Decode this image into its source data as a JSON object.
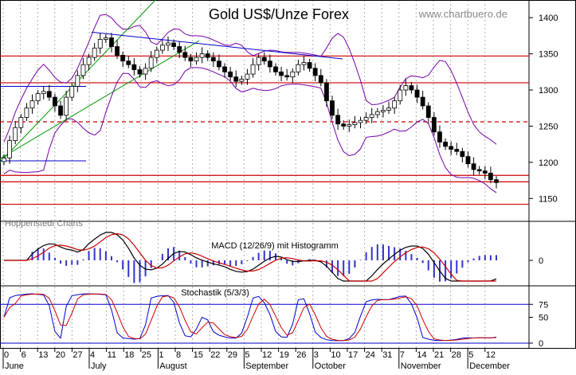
{
  "chart_data": {
    "type": "candlestick",
    "title": "Gold US$/Unze Forex",
    "watermark": "www.chartbuero.de",
    "source_label": "Hoppenstedt Charts",
    "price_axis": {
      "ylim": [
        1125,
        1420
      ],
      "ticks": [
        "1400",
        "1350",
        "1300",
        "1250",
        "1200",
        "1150"
      ]
    },
    "horizontal_lines": [
      {
        "value": 1347,
        "style": "solid",
        "color": "#cc0000"
      },
      {
        "value": 1310,
        "style": "solid",
        "color": "#cc0000"
      },
      {
        "value": 1256,
        "style": "dashed",
        "color": "#cc0000"
      },
      {
        "value": 1182,
        "style": "solid",
        "color": "#cc0000"
      },
      {
        "value": 1173,
        "style": "solid",
        "color": "#cc0000"
      },
      {
        "value": 1142,
        "style": "solid",
        "color": "#cc0000"
      }
    ],
    "x_axis": {
      "day_ticks": [
        "0",
        "6",
        "13",
        "20",
        "27",
        "4",
        "11",
        "18",
        "25",
        "1",
        "8",
        "15",
        "22",
        "29",
        "5",
        "12",
        "19",
        "26",
        "3",
        "10",
        "17",
        "24",
        "31",
        "7",
        "14",
        "21",
        "28",
        "5",
        "12"
      ],
      "months": [
        "June",
        "July",
        "August",
        "September",
        "October",
        "November",
        "December"
      ]
    },
    "close_series": [
      1206,
      1230,
      1248,
      1262,
      1275,
      1285,
      1295,
      1298,
      1290,
      1278,
      1265,
      1290,
      1305,
      1320,
      1335,
      1345,
      1358,
      1370,
      1372,
      1360,
      1348,
      1340,
      1335,
      1328,
      1322,
      1330,
      1345,
      1355,
      1362,
      1365,
      1360,
      1352,
      1345,
      1340,
      1345,
      1350,
      1345,
      1340,
      1332,
      1325,
      1318,
      1312,
      1315,
      1322,
      1335,
      1345,
      1340,
      1332,
      1325,
      1320,
      1318,
      1325,
      1335,
      1338,
      1330,
      1320,
      1310,
      1285,
      1265,
      1253,
      1250,
      1252,
      1255,
      1258,
      1262,
      1266,
      1270,
      1272,
      1275,
      1285,
      1300,
      1306,
      1300,
      1290,
      1278,
      1262,
      1242,
      1228,
      1222,
      1218,
      1215,
      1208,
      1198,
      1190,
      1188,
      1185,
      1176,
      1172
    ],
    "macd": {
      "title": "MACD (12/26/9) mit Histogramm",
      "zero_label": "0",
      "colors": {
        "macd": "#000000",
        "signal": "#cc0000",
        "histogram": "#3333cc"
      }
    },
    "stochastic": {
      "title": "Stochastik (5/3/3)",
      "ticks": [
        "75",
        "50",
        "0"
      ],
      "colors": {
        "k": "#0000cc",
        "d": "#cc0000",
        "levels": "#0000cc"
      }
    },
    "colors": {
      "up_candle": "#ffffff",
      "down_candle": "#000000",
      "bollinger": "#7700aa",
      "trend_channel": "#009900",
      "trend_line": "#0000cc"
    }
  }
}
